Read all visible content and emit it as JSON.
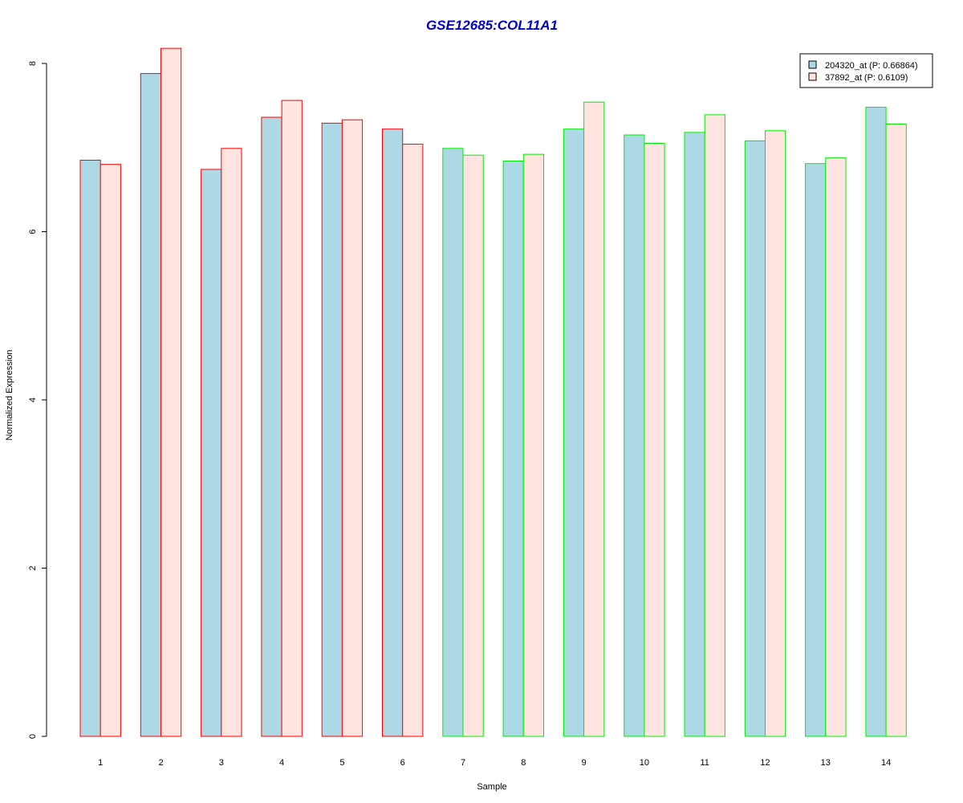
{
  "chart_data": {
    "type": "bar",
    "title": "GSE12685:COL11A1",
    "xlabel": "Sample",
    "ylabel": "Normalized Expression",
    "categories": [
      "1",
      "2",
      "3",
      "4",
      "5",
      "6",
      "7",
      "8",
      "9",
      "10",
      "11",
      "12",
      "13",
      "14"
    ],
    "ylim": [
      0,
      8
    ],
    "yticks": [
      0,
      2,
      4,
      6,
      8
    ],
    "series": [
      {
        "name": "204320_at (P: 0.66864)",
        "fill": "#add8e6",
        "values": [
          6.85,
          7.88,
          6.74,
          7.36,
          7.29,
          7.22,
          6.99,
          6.84,
          7.22,
          7.15,
          7.18,
          7.08,
          6.81,
          7.48
        ]
      },
      {
        "name": "37892_at (P: 0.6109)",
        "fill": "#ffe4e1",
        "values": [
          6.8,
          8.18,
          6.99,
          7.56,
          7.33,
          7.04,
          6.91,
          6.92,
          7.54,
          7.05,
          7.39,
          7.2,
          6.88,
          7.28
        ]
      }
    ],
    "group_borders": [
      "#ff0000",
      "#ff0000",
      "#ff0000",
      "#ff0000",
      "#ff0000",
      "#ff0000",
      "#00ee00",
      "#00ee00",
      "#00ee00",
      "#00ee00",
      "#00ee00",
      "#00ee00",
      "#00ee00",
      "#00ee00"
    ],
    "title_color": "#0000cc",
    "legend_position": "top-right",
    "grid": false
  }
}
